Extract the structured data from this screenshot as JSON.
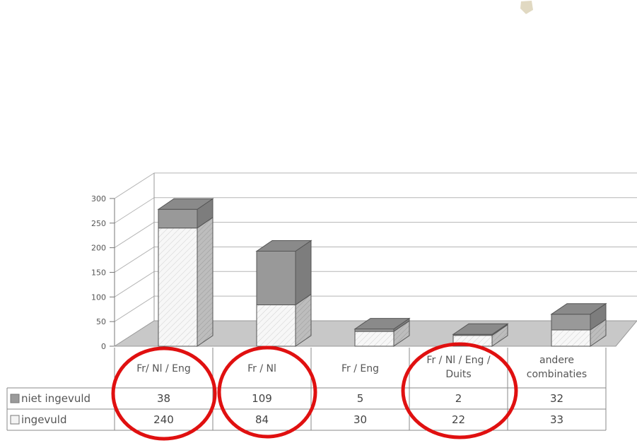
{
  "chart_data": {
    "type": "bar",
    "stacked": true,
    "style": "3d",
    "categories": [
      [
        "Fr/ Nl / Eng"
      ],
      [
        "Fr / Nl"
      ],
      [
        "Fr / Eng"
      ],
      [
        "Fr / Nl / Eng /",
        "Duits"
      ],
      [
        "andere",
        "combinaties"
      ]
    ],
    "series": [
      {
        "name": "ingevuld",
        "values": [
          240,
          84,
          30,
          22,
          33
        ],
        "color": "#f4f4f4"
      },
      {
        "name": "niet ingevuld",
        "values": [
          38,
          109,
          5,
          2,
          32
        ],
        "color": "#999999"
      }
    ],
    "ylim": [
      0,
      300
    ],
    "yticks": [
      "0",
      "50",
      "100",
      "150",
      "200",
      "250",
      "300"
    ],
    "grid": true,
    "legend": "data-table-left",
    "annotations": [
      "red circles around Fr/ Nl / Eng, Fr / Nl and Fr / Nl / Eng / Duits"
    ]
  }
}
